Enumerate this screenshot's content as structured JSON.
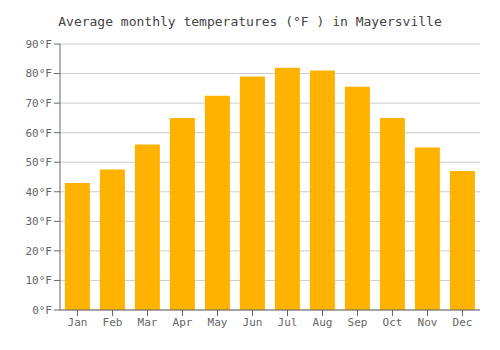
{
  "chart_data": {
    "type": "bar",
    "title": "Average monthly temperatures (°F ) in Mayersville",
    "categories": [
      "Jan",
      "Feb",
      "Mar",
      "Apr",
      "May",
      "Jun",
      "Jul",
      "Aug",
      "Sep",
      "Oct",
      "Nov",
      "Dec"
    ],
    "values": [
      43,
      47.5,
      56,
      65,
      72.5,
      79,
      82,
      81,
      75.5,
      65,
      55,
      47
    ],
    "color": "#FFB300",
    "ylim": [
      0,
      90
    ],
    "yticks": [
      {
        "value": 0,
        "label": "0°F"
      },
      {
        "value": 10,
        "label": "10°F"
      },
      {
        "value": 20,
        "label": "20°F"
      },
      {
        "value": 30,
        "label": "30°F"
      },
      {
        "value": 40,
        "label": "40°F"
      },
      {
        "value": 50,
        "label": "50°F"
      },
      {
        "value": 60,
        "label": "60°F"
      },
      {
        "value": 70,
        "label": "70°F"
      },
      {
        "value": 80,
        "label": "80°F"
      },
      {
        "value": 90,
        "label": "90°F"
      }
    ],
    "grid": true
  }
}
